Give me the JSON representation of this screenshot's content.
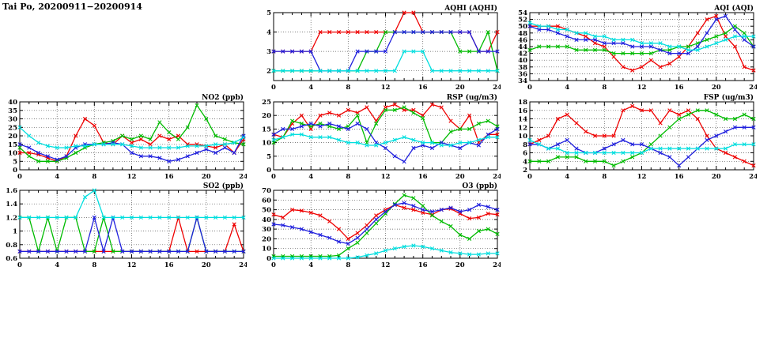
{
  "title": "Tai Po, 20200911−20200914",
  "station": "Tai Po",
  "date_range": "20200911−20200914",
  "chart_data": [
    {
      "id": "aqhi",
      "type": "line",
      "title": "AQHI (AQHI)",
      "xlim": [
        0,
        24
      ],
      "xticks": [
        0,
        4,
        8,
        12,
        16,
        20,
        24
      ],
      "ylim": [
        1.5,
        5
      ],
      "yticks": [
        2,
        3,
        4,
        5
      ],
      "x_start": 0,
      "x_step": 1,
      "grid": "dotted",
      "series": [
        {
          "name": "red",
          "color": "#ee0000",
          "values": [
            3,
            3,
            3,
            3,
            3,
            4,
            4,
            4,
            4,
            4,
            4,
            4,
            4,
            4,
            5,
            5,
            4,
            4,
            4,
            4,
            4,
            4,
            3,
            3,
            4
          ]
        },
        {
          "name": "green",
          "color": "#00bb00",
          "values": [
            2,
            2,
            2,
            2,
            2,
            2,
            2,
            2,
            2,
            2,
            3,
            3,
            4,
            4,
            4,
            4,
            4,
            4,
            4,
            4,
            3,
            3,
            3,
            4,
            2
          ]
        },
        {
          "name": "blue",
          "color": "#2020dd",
          "values": [
            3,
            3,
            3,
            3,
            3,
            2,
            2,
            2,
            2,
            3,
            3,
            3,
            3,
            4,
            4,
            4,
            4,
            4,
            4,
            4,
            4,
            4,
            3,
            3,
            3
          ]
        },
        {
          "name": "cyan",
          "color": "#00dede",
          "values": [
            2,
            2,
            2,
            2,
            2,
            2,
            2,
            2,
            2,
            2,
            2,
            2,
            2,
            2,
            3,
            3,
            3,
            2,
            2,
            2,
            2,
            2,
            2,
            2,
            2
          ]
        }
      ]
    },
    {
      "id": "aqi",
      "type": "line",
      "title": "AQI (AQI)",
      "xlim": [
        0,
        24
      ],
      "xticks": [
        0,
        4,
        8,
        12,
        16,
        20,
        24
      ],
      "ylim": [
        34,
        54
      ],
      "yticks": [
        34,
        36,
        38,
        40,
        42,
        44,
        46,
        48,
        50,
        52,
        54
      ],
      "x_start": 0,
      "x_step": 1,
      "grid": "dotted",
      "series": [
        {
          "name": "red",
          "color": "#ee0000",
          "values": [
            50,
            50,
            50,
            50,
            49,
            48,
            47,
            45,
            44,
            41,
            38,
            37,
            38,
            40,
            38,
            39,
            41,
            44,
            48,
            52,
            53,
            47,
            44,
            38,
            37
          ]
        },
        {
          "name": "green",
          "color": "#00bb00",
          "values": [
            43,
            44,
            44,
            44,
            44,
            43,
            43,
            43,
            43,
            42,
            42,
            42,
            42,
            42,
            43,
            43,
            44,
            44,
            45,
            46,
            47,
            48,
            50,
            48,
            44
          ]
        },
        {
          "name": "blue",
          "color": "#2020dd",
          "values": [
            50,
            49,
            49,
            48,
            47,
            46,
            46,
            46,
            45,
            45,
            45,
            44,
            44,
            44,
            43,
            42,
            42,
            42,
            44,
            48,
            52,
            53,
            49,
            46,
            44
          ]
        },
        {
          "name": "cyan",
          "color": "#00dede",
          "values": [
            51,
            50,
            50,
            49,
            49,
            48,
            48,
            47,
            47,
            46,
            46,
            46,
            45,
            45,
            45,
            44,
            44,
            43,
            43,
            44,
            45,
            46,
            47,
            47,
            47
          ]
        }
      ]
    },
    {
      "id": "no2",
      "type": "line",
      "title": "NO2 (ppb)",
      "xlim": [
        0,
        24
      ],
      "xticks": [
        0,
        4,
        8,
        12,
        16,
        20,
        24
      ],
      "ylim": [
        0,
        40
      ],
      "yticks": [
        0,
        5,
        10,
        15,
        20,
        25,
        30,
        35,
        40
      ],
      "x_start": 0,
      "x_step": 1,
      "grid": "dotted",
      "series": [
        {
          "name": "red",
          "color": "#ee0000",
          "values": [
            10,
            10,
            9,
            7,
            5,
            8,
            20,
            30,
            26,
            16,
            15,
            20,
            16,
            18,
            15,
            20,
            18,
            20,
            15,
            15,
            14,
            13,
            15,
            10,
            18
          ]
        },
        {
          "name": "green",
          "color": "#00bb00",
          "values": [
            13,
            8,
            5,
            5,
            5,
            7,
            10,
            13,
            15,
            16,
            17,
            20,
            18,
            20,
            18,
            28,
            22,
            18,
            25,
            38,
            30,
            20,
            18,
            16,
            15
          ]
        },
        {
          "name": "blue",
          "color": "#2020dd",
          "values": [
            15,
            13,
            10,
            8,
            6,
            8,
            13,
            15,
            15,
            15,
            16,
            15,
            10,
            8,
            8,
            7,
            5,
            6,
            8,
            10,
            12,
            10,
            13,
            10,
            20
          ]
        },
        {
          "name": "cyan",
          "color": "#00dede",
          "values": [
            25,
            20,
            16,
            14,
            13,
            13,
            14,
            14,
            15,
            15,
            15,
            15,
            14,
            13,
            13,
            13,
            13,
            13,
            14,
            14,
            14,
            15,
            15,
            16,
            19
          ]
        }
      ]
    },
    {
      "id": "rsp",
      "type": "line",
      "title": "RSP (ug/m3)",
      "xlim": [
        0,
        24
      ],
      "xticks": [
        0,
        4,
        8,
        12,
        16,
        20,
        24
      ],
      "ylim": [
        0,
        25
      ],
      "yticks": [
        0,
        5,
        10,
        15,
        20,
        25
      ],
      "x_start": 0,
      "x_step": 1,
      "grid": "dotted",
      "series": [
        {
          "name": "red",
          "color": "#ee0000",
          "values": [
            13,
            12,
            17,
            20,
            15,
            20,
            21,
            20,
            22,
            21,
            23,
            18,
            23,
            24,
            22,
            22,
            20,
            24,
            23,
            18,
            15,
            20,
            10,
            13,
            13
          ]
        },
        {
          "name": "green",
          "color": "#00bb00",
          "values": [
            10,
            12,
            18,
            17,
            16,
            17,
            16,
            15,
            16,
            20,
            10,
            17,
            22,
            22,
            23,
            21,
            19,
            10,
            10,
            14,
            15,
            15,
            17,
            18,
            16
          ]
        },
        {
          "name": "blue",
          "color": "#2020dd",
          "values": [
            13,
            15,
            15,
            16,
            17,
            16,
            17,
            16,
            15,
            17,
            15,
            10,
            8,
            5,
            3,
            8,
            9,
            8,
            10,
            9,
            8,
            10,
            9,
            13,
            15
          ]
        },
        {
          "name": "cyan",
          "color": "#00dede",
          "values": [
            11,
            12,
            13,
            13,
            12,
            12,
            12,
            11,
            10,
            10,
            9,
            9,
            10,
            11,
            12,
            11,
            10,
            10,
            9,
            9,
            10,
            10,
            11,
            12,
            12
          ]
        }
      ]
    },
    {
      "id": "fsp",
      "type": "line",
      "title": "FSP (ug/m3)",
      "xlim": [
        0,
        24
      ],
      "xticks": [
        0,
        4,
        8,
        12,
        16,
        20,
        24
      ],
      "ylim": [
        2,
        18
      ],
      "yticks": [
        2,
        4,
        6,
        8,
        10,
        12,
        14,
        16,
        18
      ],
      "x_start": 0,
      "x_step": 1,
      "grid": "dotted",
      "series": [
        {
          "name": "red",
          "color": "#ee0000",
          "values": [
            8,
            9,
            10,
            14,
            15,
            13,
            11,
            10,
            10,
            10,
            16,
            17,
            16,
            16,
            13,
            16,
            15,
            16,
            14,
            10,
            7,
            6,
            5,
            4,
            3
          ]
        },
        {
          "name": "green",
          "color": "#00bb00",
          "values": [
            4,
            4,
            4,
            5,
            5,
            5,
            4,
            4,
            4,
            3,
            4,
            5,
            6,
            8,
            10,
            12,
            14,
            15,
            16,
            16,
            15,
            14,
            14,
            15,
            14
          ]
        },
        {
          "name": "blue",
          "color": "#2020dd",
          "values": [
            8,
            8,
            7,
            8,
            9,
            7,
            6,
            6,
            7,
            8,
            9,
            8,
            8,
            7,
            6,
            5,
            3,
            5,
            7,
            9,
            10,
            11,
            12,
            12,
            12
          ]
        },
        {
          "name": "cyan",
          "color": "#00dede",
          "values": [
            9,
            8,
            7,
            7,
            6,
            6,
            6,
            6,
            6,
            6,
            6,
            6,
            6,
            7,
            7,
            7,
            7,
            7,
            7,
            7,
            7,
            7,
            8,
            8,
            8
          ]
        }
      ]
    },
    {
      "id": "so2",
      "type": "line",
      "title": "SO2 (ppb)",
      "xlim": [
        0,
        24
      ],
      "xticks": [
        0,
        4,
        8,
        12,
        16,
        20,
        24
      ],
      "ylim": [
        0.6,
        1.6
      ],
      "yticks": [
        0.6,
        0.8,
        1,
        1.2,
        1.4,
        1.6
      ],
      "x_start": 0,
      "x_step": 1,
      "grid": "dotted",
      "series": [
        {
          "name": "red",
          "color": "#ee0000",
          "values": [
            0.7,
            0.7,
            0.7,
            0.7,
            0.7,
            0.7,
            0.7,
            0.7,
            0.7,
            0.7,
            0.7,
            0.7,
            0.7,
            0.7,
            0.7,
            0.7,
            0.7,
            1.2,
            0.7,
            0.7,
            0.7,
            0.7,
            0.7,
            1.1,
            0.7
          ]
        },
        {
          "name": "green",
          "color": "#00bb00",
          "values": [
            1.2,
            1.2,
            0.7,
            1.2,
            0.7,
            1.2,
            1.2,
            0.7,
            0.7,
            1.2,
            0.7,
            0.7,
            0.7,
            0.7,
            0.7,
            0.7,
            0.7,
            0.7,
            0.7,
            1.2,
            0.7,
            0.7,
            0.7,
            0.7,
            0.7
          ]
        },
        {
          "name": "blue",
          "color": "#2020dd",
          "values": [
            0.7,
            0.7,
            0.7,
            0.7,
            0.7,
            0.7,
            0.7,
            0.7,
            1.2,
            0.7,
            1.2,
            0.7,
            0.7,
            0.7,
            0.7,
            0.7,
            0.7,
            0.7,
            0.7,
            1.2,
            0.7,
            0.7,
            0.7,
            0.7,
            0.7
          ]
        },
        {
          "name": "cyan",
          "color": "#00dede",
          "values": [
            1.2,
            1.2,
            1.2,
            1.2,
            1.2,
            1.2,
            1.2,
            1.5,
            1.6,
            1.2,
            1.2,
            1.2,
            1.2,
            1.2,
            1.2,
            1.2,
            1.2,
            1.2,
            1.2,
            1.2,
            1.2,
            1.2,
            1.2,
            1.2,
            1.2
          ]
        }
      ]
    },
    {
      "id": "o3",
      "type": "line",
      "title": "O3 (ppb)",
      "xlim": [
        0,
        24
      ],
      "xticks": [
        0,
        4,
        8,
        12,
        16,
        20,
        24
      ],
      "ylim": [
        0,
        70
      ],
      "yticks": [
        0,
        10,
        20,
        30,
        40,
        50,
        60,
        70
      ],
      "x_start": 0,
      "x_step": 1,
      "grid": "dotted",
      "series": [
        {
          "name": "red",
          "color": "#ee0000",
          "values": [
            45,
            42,
            50,
            49,
            47,
            44,
            38,
            30,
            20,
            26,
            34,
            44,
            50,
            55,
            52,
            50,
            47,
            45,
            50,
            51,
            46,
            41,
            42,
            46,
            45
          ]
        },
        {
          "name": "green",
          "color": "#00bb00",
          "values": [
            2,
            2,
            2,
            2,
            2,
            2,
            2,
            3,
            10,
            16,
            26,
            36,
            46,
            56,
            65,
            62,
            54,
            44,
            38,
            33,
            24,
            20,
            28,
            30,
            25
          ]
        },
        {
          "name": "blue",
          "color": "#2020dd",
          "values": [
            35,
            34,
            32,
            30,
            27,
            24,
            21,
            17,
            15,
            21,
            30,
            40,
            48,
            55,
            57,
            54,
            50,
            48,
            50,
            52,
            48,
            50,
            55,
            53,
            50
          ]
        },
        {
          "name": "cyan",
          "color": "#00dede",
          "values": [
            0,
            0,
            0,
            0,
            0,
            0,
            0,
            0,
            0,
            1,
            3,
            5,
            8,
            10,
            12,
            13,
            12,
            10,
            8,
            6,
            5,
            4,
            4,
            5,
            5
          ]
        }
      ]
    }
  ]
}
